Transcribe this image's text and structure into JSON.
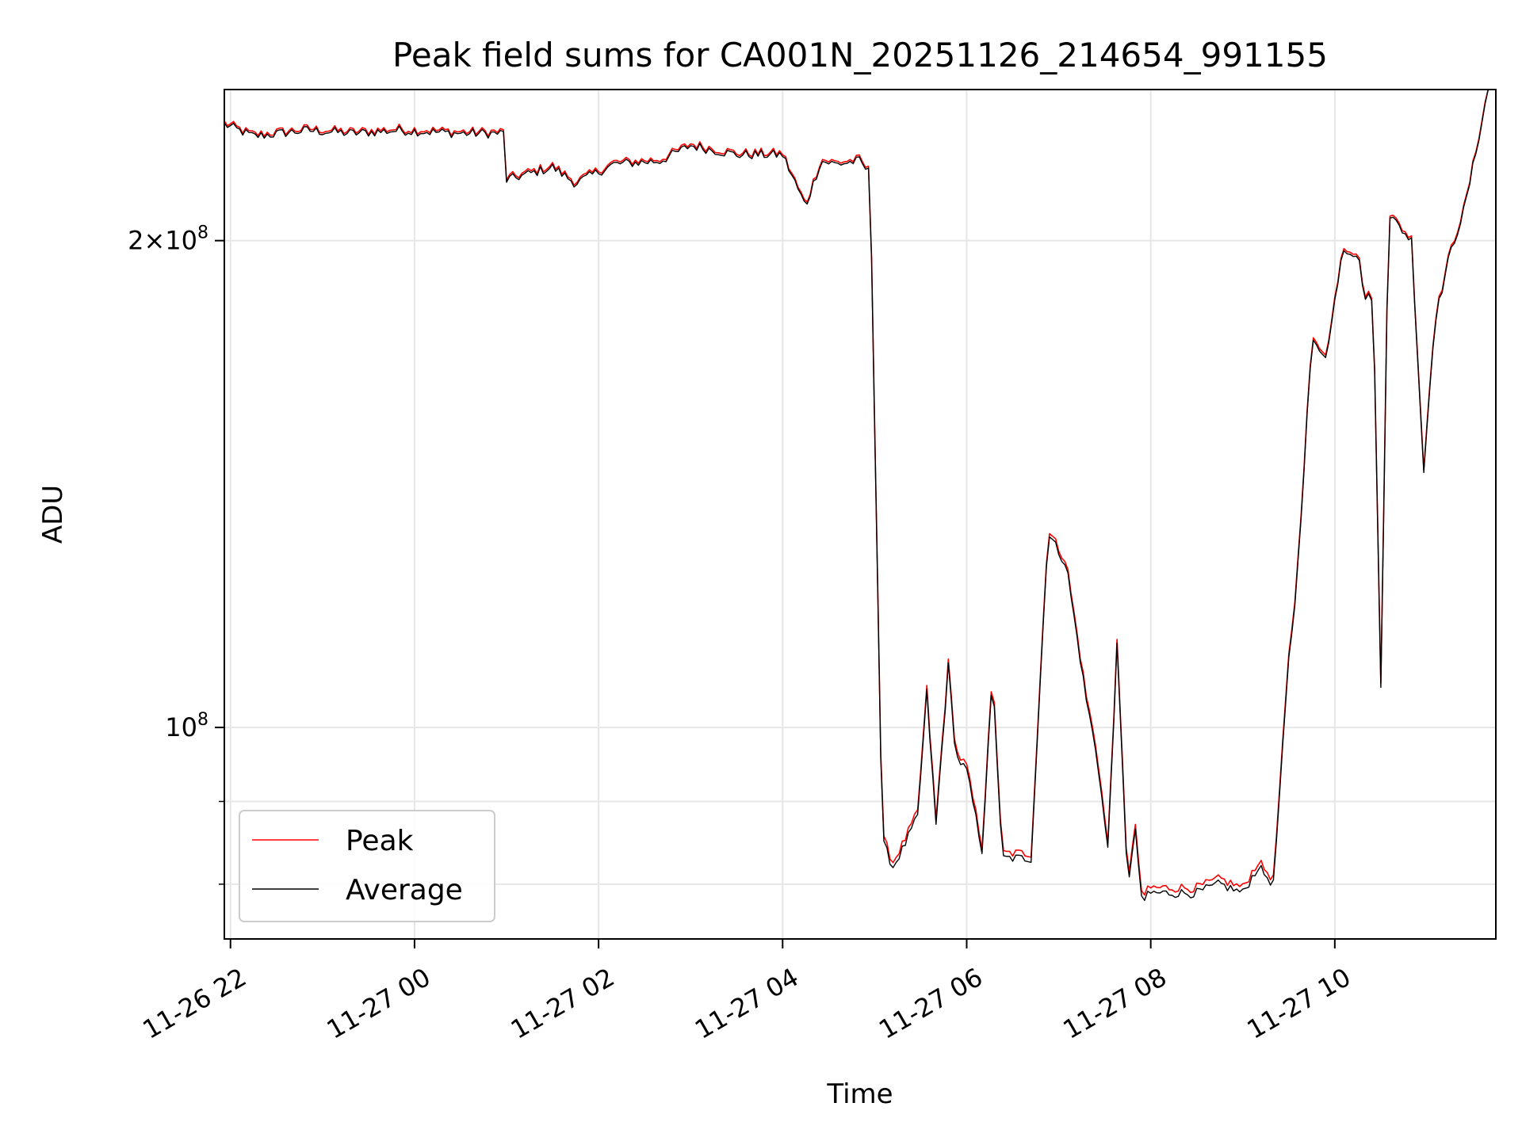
{
  "chart_data": {
    "type": "line",
    "title": "Peak field sums for CA001N_20251126_214654_991155",
    "xlabel": "Time",
    "ylabel": "ADU",
    "y_scale": "log",
    "grid": true,
    "legend_position": "lower-left",
    "x_range": [
      "2025-11-26 21:56",
      "2025-11-27 11:45"
    ],
    "ylim": [
      74000000,
      248000000
    ],
    "x_ticks": [
      "2025-11-26 22:00",
      "2025-11-27 00:00",
      "2025-11-27 02:00",
      "2025-11-27 04:00",
      "2025-11-27 06:00",
      "2025-11-27 08:00",
      "2025-11-27 10:00"
    ],
    "x_tick_labels": [
      "11-26 22",
      "11-27 00",
      "11-27 02",
      "11-27 04",
      "11-27 06",
      "11-27 08",
      "11-27 10"
    ],
    "y_major_ticks": [
      100000000,
      200000000
    ],
    "y_major_tick_labels": [
      "10^8",
      "2×10^8"
    ],
    "y_minor_ticks": [
      80000000,
      90000000,
      300000000
    ],
    "series": [
      {
        "name": "Peak",
        "color": "#ff0000",
        "offset_note": "tracks Average, slightly higher (~+0.5e6 ADU)"
      },
      {
        "name": "Average",
        "color": "#000000",
        "x": [
          "2025-11-26 21:56",
          "2025-11-26 22:15",
          "2025-11-26 22:50",
          "2025-11-26 23:20",
          "2025-11-26 23:50",
          "2025-11-27 00:30",
          "2025-11-27 00:58",
          "2025-11-27 01:00",
          "2025-11-27 01:15",
          "2025-11-27 01:30",
          "2025-11-27 01:45",
          "2025-11-27 02:10",
          "2025-11-27 02:40",
          "2025-11-27 03:00",
          "2025-11-27 03:30",
          "2025-11-27 04:00",
          "2025-11-27 04:15",
          "2025-11-27 04:25",
          "2025-11-27 04:35",
          "2025-11-27 04:50",
          "2025-11-27 04:57",
          "2025-11-27 05:05",
          "2025-11-27 05:12",
          "2025-11-27 05:18",
          "2025-11-27 05:28",
          "2025-11-27 05:34",
          "2025-11-27 05:40",
          "2025-11-27 05:48",
          "2025-11-27 05:53",
          "2025-11-27 06:00",
          "2025-11-27 06:10",
          "2025-11-27 06:17",
          "2025-11-27 06:23",
          "2025-11-27 06:42",
          "2025-11-27 06:53",
          "2025-11-27 07:05",
          "2025-11-27 07:18",
          "2025-11-27 07:25",
          "2025-11-27 07:32",
          "2025-11-27 07:38",
          "2025-11-27 07:45",
          "2025-11-27 07:50",
          "2025-11-27 07:55",
          "2025-11-27 07:58",
          "2025-11-27 08:10",
          "2025-11-27 08:30",
          "2025-11-27 08:45",
          "2025-11-27 09:00",
          "2025-11-27 09:10",
          "2025-11-27 09:20",
          "2025-11-27 09:30",
          "2025-11-27 09:35",
          "2025-11-27 09:45",
          "2025-11-27 09:55",
          "2025-11-27 10:05",
          "2025-11-27 10:15",
          "2025-11-27 10:20",
          "2025-11-27 10:25",
          "2025-11-27 10:30",
          "2025-11-27 10:35",
          "2025-11-27 10:40",
          "2025-11-27 10:50",
          "2025-11-27 10:58",
          "2025-11-27 11:05",
          "2025-11-27 11:15",
          "2025-11-27 11:25",
          "2025-11-27 11:40"
        ],
        "y": [
          236000000,
          232000000,
          234000000,
          233000000,
          234000000,
          233000000,
          233000000,
          218000000,
          220000000,
          222000000,
          217000000,
          223000000,
          224000000,
          229000000,
          226000000,
          226000000,
          210000000,
          224000000,
          223000000,
          224000000,
          220000000,
          85000000,
          82000000,
          84000000,
          88000000,
          105000000,
          87000000,
          109000000,
          96000000,
          94000000,
          84000000,
          108000000,
          83000000,
          83000000,
          132000000,
          126000000,
          104000000,
          96000000,
          84000000,
          112000000,
          80000000,
          86000000,
          77000000,
          79000000,
          79000000,
          79000000,
          80000000,
          79000000,
          82000000,
          80000000,
          110000000,
          122000000,
          173000000,
          170000000,
          198000000,
          196000000,
          184000000,
          185000000,
          106000000,
          208000000,
          205000000,
          200000000,
          144000000,
          178000000,
          196000000,
          210000000,
          248000000
        ]
      }
    ]
  }
}
